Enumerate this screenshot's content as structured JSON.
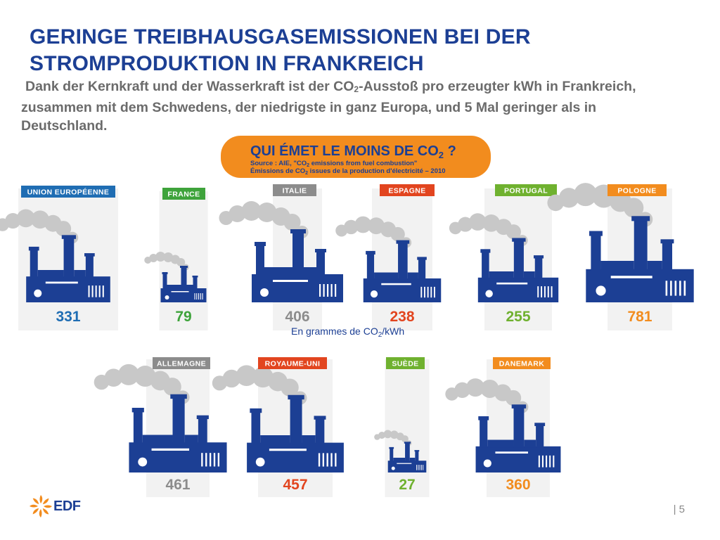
{
  "slide": {
    "title_line1": "GERINGE TREIBHAUSGASEMISSIONEN BEI DER",
    "title_line2": "STROMPRODUKTION IN FRANKREICH",
    "subtitle_before": "Dank der Kernkraft und der Wasserkraft ist der CO",
    "subtitle_sub": "2",
    "subtitle_after": "-Ausstoß pro erzeugter kWh in Frankreich, zusammen mit dem Schwedens, der niedrigste in ganz Europa, und 5 Mal geringer als in Deutschland.",
    "page_number": "5",
    "page_sep": "|"
  },
  "banner": {
    "title": "QUI ÉMET LE MOINS DE CO",
    "title_sub": "2",
    "title_end": " ?",
    "source_line1": "Source : AIE, \"CO",
    "source_line1_sub": "2",
    "source_line1_end": " emissions from fuel combustion\"",
    "source_line2": "Émissions de CO",
    "source_line2_sub": "2",
    "source_line2_end": " issues de la production d'électricité – 2010",
    "color": "#f28c1e"
  },
  "unit": {
    "text": "En grammes de CO",
    "sub": "2",
    "end": "/kWh"
  },
  "logo": {
    "text": "EDF",
    "color": "#f28c1e"
  },
  "colors": {
    "factory": "#1c3f94",
    "smoke": "#c8c8c8",
    "panel": "#f2f2f2"
  },
  "countries": [
    {
      "name": "UNION EUROPÉENNE",
      "value": "331",
      "color": "#1f6db3",
      "emission": 331
    },
    {
      "name": "FRANCE",
      "value": "79",
      "color": "#3ea33b",
      "emission": 79
    },
    {
      "name": "ITALIE",
      "value": "406",
      "color": "#8c8c8c",
      "emission": 406
    },
    {
      "name": "ESPAGNE",
      "value": "238",
      "color": "#e2451f",
      "emission": 238
    },
    {
      "name": "PORTUGAL",
      "value": "255",
      "color": "#6fb12f",
      "emission": 255
    },
    {
      "name": "POLOGNE",
      "value": "781",
      "color": "#f28c1e",
      "emission": 781
    },
    {
      "name": "ALLEMAGNE",
      "value": "461",
      "color": "#8c8c8c",
      "emission": 461
    },
    {
      "name": "ROYAUME-UNI",
      "value": "457",
      "color": "#e2451f",
      "emission": 457
    },
    {
      "name": "SUÈDE",
      "value": "27",
      "color": "#6fb12f",
      "emission": 27
    },
    {
      "name": "DANEMARK",
      "value": "360",
      "color": "#f28c1e",
      "emission": 360
    }
  ]
}
